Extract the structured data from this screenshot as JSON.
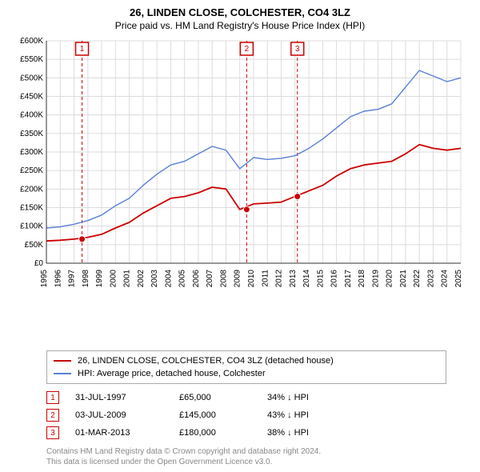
{
  "chart": {
    "title_line1": "26, LINDEN CLOSE, COLCHESTER, CO4 3LZ",
    "title_line2": "Price paid vs. HM Land Registry's House Price Index (HPI)",
    "type": "line",
    "background_color": "#ffffff",
    "grid_color": "#dcdcdc",
    "axis_color": "#333333",
    "text_color": "#000000",
    "title_fontsize": 13,
    "subtitle_fontsize": 12,
    "axis_label_fontsize": 10,
    "x": {
      "years": [
        1995,
        1996,
        1997,
        1998,
        1999,
        2000,
        2001,
        2002,
        2003,
        2004,
        2005,
        2006,
        2007,
        2008,
        2009,
        2010,
        2011,
        2012,
        2013,
        2014,
        2015,
        2016,
        2017,
        2018,
        2019,
        2020,
        2021,
        2022,
        2023,
        2024,
        2025
      ],
      "min": 1995,
      "max": 2025
    },
    "y": {
      "min": 0,
      "max": 600000,
      "step": 50000,
      "labels": [
        "£0",
        "£50K",
        "£100K",
        "£150K",
        "£200K",
        "£250K",
        "£300K",
        "£350K",
        "£400K",
        "£450K",
        "£500K",
        "£550K",
        "£600K"
      ]
    },
    "series": [
      {
        "name": "26, LINDEN CLOSE, COLCHESTER, CO4 3LZ (detached house)",
        "color": "#cc0000",
        "line_width": 1.8,
        "points": [
          [
            1995,
            60000
          ],
          [
            1996,
            62000
          ],
          [
            1997,
            65000
          ],
          [
            1998,
            70000
          ],
          [
            1999,
            78000
          ],
          [
            2000,
            95000
          ],
          [
            2001,
            110000
          ],
          [
            2002,
            135000
          ],
          [
            2003,
            155000
          ],
          [
            2004,
            175000
          ],
          [
            2005,
            180000
          ],
          [
            2006,
            190000
          ],
          [
            2007,
            205000
          ],
          [
            2008,
            200000
          ],
          [
            2009,
            145000
          ],
          [
            2010,
            160000
          ],
          [
            2011,
            162000
          ],
          [
            2012,
            165000
          ],
          [
            2013,
            180000
          ],
          [
            2014,
            195000
          ],
          [
            2015,
            210000
          ],
          [
            2016,
            235000
          ],
          [
            2017,
            255000
          ],
          [
            2018,
            265000
          ],
          [
            2019,
            270000
          ],
          [
            2020,
            275000
          ],
          [
            2021,
            295000
          ],
          [
            2022,
            320000
          ],
          [
            2023,
            310000
          ],
          [
            2024,
            305000
          ],
          [
            2025,
            310000
          ]
        ]
      },
      {
        "name": "HPI: Average price, detached house, Colchester",
        "color": "#5b7fd6",
        "line_width": 1.4,
        "points": [
          [
            1995,
            95000
          ],
          [
            1996,
            98000
          ],
          [
            1997,
            105000
          ],
          [
            1998,
            115000
          ],
          [
            1999,
            130000
          ],
          [
            2000,
            155000
          ],
          [
            2001,
            175000
          ],
          [
            2002,
            210000
          ],
          [
            2003,
            240000
          ],
          [
            2004,
            265000
          ],
          [
            2005,
            275000
          ],
          [
            2006,
            295000
          ],
          [
            2007,
            315000
          ],
          [
            2008,
            305000
          ],
          [
            2009,
            255000
          ],
          [
            2010,
            285000
          ],
          [
            2011,
            280000
          ],
          [
            2012,
            283000
          ],
          [
            2013,
            290000
          ],
          [
            2014,
            310000
          ],
          [
            2015,
            335000
          ],
          [
            2016,
            365000
          ],
          [
            2017,
            395000
          ],
          [
            2018,
            410000
          ],
          [
            2019,
            415000
          ],
          [
            2020,
            430000
          ],
          [
            2021,
            475000
          ],
          [
            2022,
            520000
          ],
          [
            2023,
            505000
          ],
          [
            2024,
            490000
          ],
          [
            2025,
            500000
          ]
        ]
      }
    ],
    "markers": [
      {
        "label": "1",
        "year": 1997.58,
        "date": "31-JUL-1997",
        "price": 65000,
        "price_text": "£65,000",
        "pct_text": "34% ↓ HPI"
      },
      {
        "label": "2",
        "year": 2009.5,
        "date": "03-JUL-2009",
        "price": 145000,
        "price_text": "£145,000",
        "pct_text": "43% ↓ HPI"
      },
      {
        "label": "3",
        "year": 2013.17,
        "date": "01-MAR-2013",
        "price": 180000,
        "price_text": "£180,000",
        "pct_text": "38% ↓ HPI"
      }
    ],
    "marker_line_color": "#cc0000",
    "marker_line_dash": "4,3",
    "marker_point_fill": "#cc0000",
    "marker_point_radius": 4
  },
  "legend": {
    "border_color": "#aaaaaa",
    "items": [
      {
        "color": "#cc0000",
        "label": "26, LINDEN CLOSE, COLCHESTER, CO4 3LZ (detached house)"
      },
      {
        "color": "#5b7fd6",
        "label": "HPI: Average price, detached house, Colchester"
      }
    ]
  },
  "footer": {
    "line1": "Contains HM Land Registry data © Crown copyright and database right 2024.",
    "line2": "This data is licensed under the Open Government Licence v3.0.",
    "color": "#888888"
  }
}
